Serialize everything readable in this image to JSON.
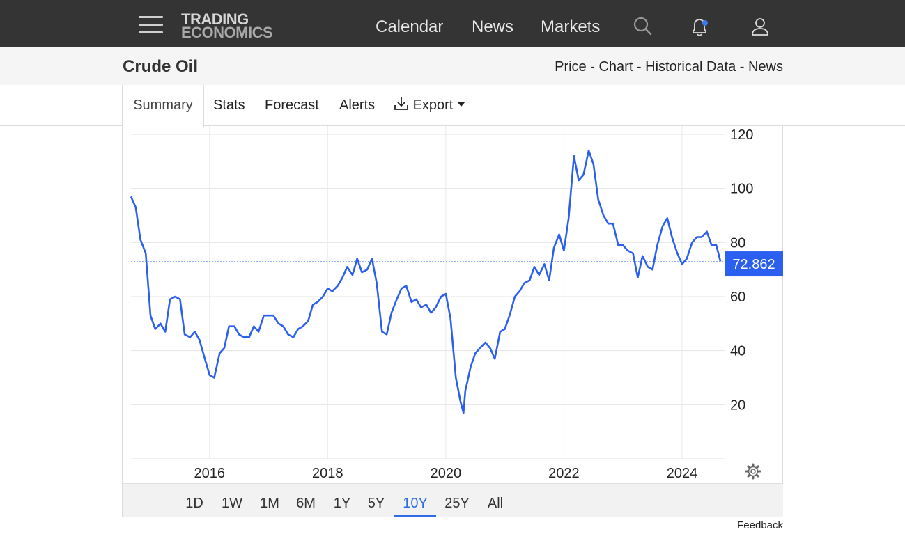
{
  "header": {
    "logo_line1": "TRADING",
    "logo_line2": "ECONOMICS",
    "nav": [
      "Calendar",
      "News",
      "Markets"
    ],
    "icons": [
      "menu-icon",
      "search-icon",
      "bell-icon",
      "user-icon"
    ],
    "notification_dot_color": "#3a7bf0"
  },
  "subheader": {
    "title": "Crude Oil",
    "links": [
      "Price",
      "Chart",
      "Historical Data",
      "News"
    ],
    "separator": " - "
  },
  "tabs": [
    "Summary",
    "Stats",
    "Forecast",
    "Alerts",
    "Export"
  ],
  "active_tab": "Summary",
  "periods": [
    "1D",
    "1W",
    "1M",
    "6M",
    "1Y",
    "5Y",
    "10Y",
    "25Y",
    "All"
  ],
  "active_period": "10Y",
  "feedback": "Feedback",
  "colors": {
    "line": "#2b5ff0",
    "accent": "#2f6ce5",
    "last_price_bg": "#2b5ff0"
  },
  "chart_data": {
    "type": "line",
    "series": [
      {
        "x": [
          2014.67,
          2014.75,
          2014.83,
          2014.92,
          2015.0,
          2015.08,
          2015.17,
          2015.25,
          2015.33,
          2015.42,
          2015.5,
          2015.58,
          2015.67,
          2015.75,
          2015.83,
          2015.92,
          2016.0,
          2016.08,
          2016.17,
          2016.25,
          2016.33,
          2016.42,
          2016.5,
          2016.58,
          2016.67,
          2016.75,
          2016.83,
          2016.92,
          2017.0,
          2017.08,
          2017.17,
          2017.25,
          2017.33,
          2017.42,
          2017.5,
          2017.58,
          2017.67,
          2017.75,
          2017.83,
          2017.92,
          2018.0,
          2018.08,
          2018.17,
          2018.25,
          2018.33,
          2018.42,
          2018.5,
          2018.58,
          2018.67,
          2018.75,
          2018.83,
          2018.92,
          2019.0,
          2019.08,
          2019.17,
          2019.25,
          2019.33,
          2019.42,
          2019.5,
          2019.58,
          2019.67,
          2019.75,
          2019.83,
          2019.92,
          2020.0,
          2020.08,
          2020.17,
          2020.25,
          2020.3,
          2020.33,
          2020.42,
          2020.5,
          2020.58,
          2020.67,
          2020.75,
          2020.83,
          2020.92,
          2021.0,
          2021.08,
          2021.17,
          2021.25,
          2021.33,
          2021.42,
          2021.5,
          2021.58,
          2021.67,
          2021.75,
          2021.83,
          2021.92,
          2022.0,
          2022.08,
          2022.17,
          2022.25,
          2022.33,
          2022.42,
          2022.5,
          2022.58,
          2022.67,
          2022.75,
          2022.83,
          2022.92,
          2023.0,
          2023.08,
          2023.17,
          2023.25,
          2023.33,
          2023.42,
          2023.5,
          2023.58,
          2023.67,
          2023.75,
          2023.83,
          2023.92,
          2024.0,
          2024.08,
          2024.17,
          2024.25,
          2024.33,
          2024.42,
          2024.5,
          2024.58,
          2024.65
        ],
        "y": [
          97,
          93,
          81,
          76,
          53,
          48,
          50,
          47,
          59,
          60,
          59,
          46,
          45,
          47,
          44,
          37,
          31,
          30,
          39,
          41,
          49,
          49,
          46,
          45,
          45,
          49,
          47,
          53,
          53,
          53,
          50,
          49,
          46,
          45,
          48,
          49,
          51,
          57,
          58,
          60,
          63,
          62,
          64,
          67,
          71,
          68,
          74,
          69,
          70,
          74,
          65,
          47,
          46,
          54,
          59,
          63,
          64,
          58,
          59,
          56,
          57,
          54,
          56,
          60,
          61,
          52,
          30,
          21,
          17,
          25,
          34,
          39,
          41,
          43,
          41,
          37,
          47,
          48,
          53,
          60,
          62,
          65,
          66,
          71,
          68,
          72,
          66,
          78,
          83,
          77,
          89,
          112,
          103,
          105,
          114,
          109,
          96,
          90,
          87,
          87,
          79,
          79,
          77,
          76,
          67,
          75,
          71,
          70,
          79,
          86,
          89,
          82,
          76,
          72,
          74,
          80,
          82,
          82,
          84,
          79,
          79,
          73
        ]
      }
    ],
    "x_ticks": [
      "2016",
      "2018",
      "2020",
      "2022",
      "2024"
    ],
    "y_ticks": [
      20,
      40,
      60,
      80,
      100,
      120
    ],
    "xlim": [
      2014.67,
      2024.72
    ],
    "ylim": [
      0,
      120
    ],
    "last_value": "72.862",
    "grid": true
  }
}
